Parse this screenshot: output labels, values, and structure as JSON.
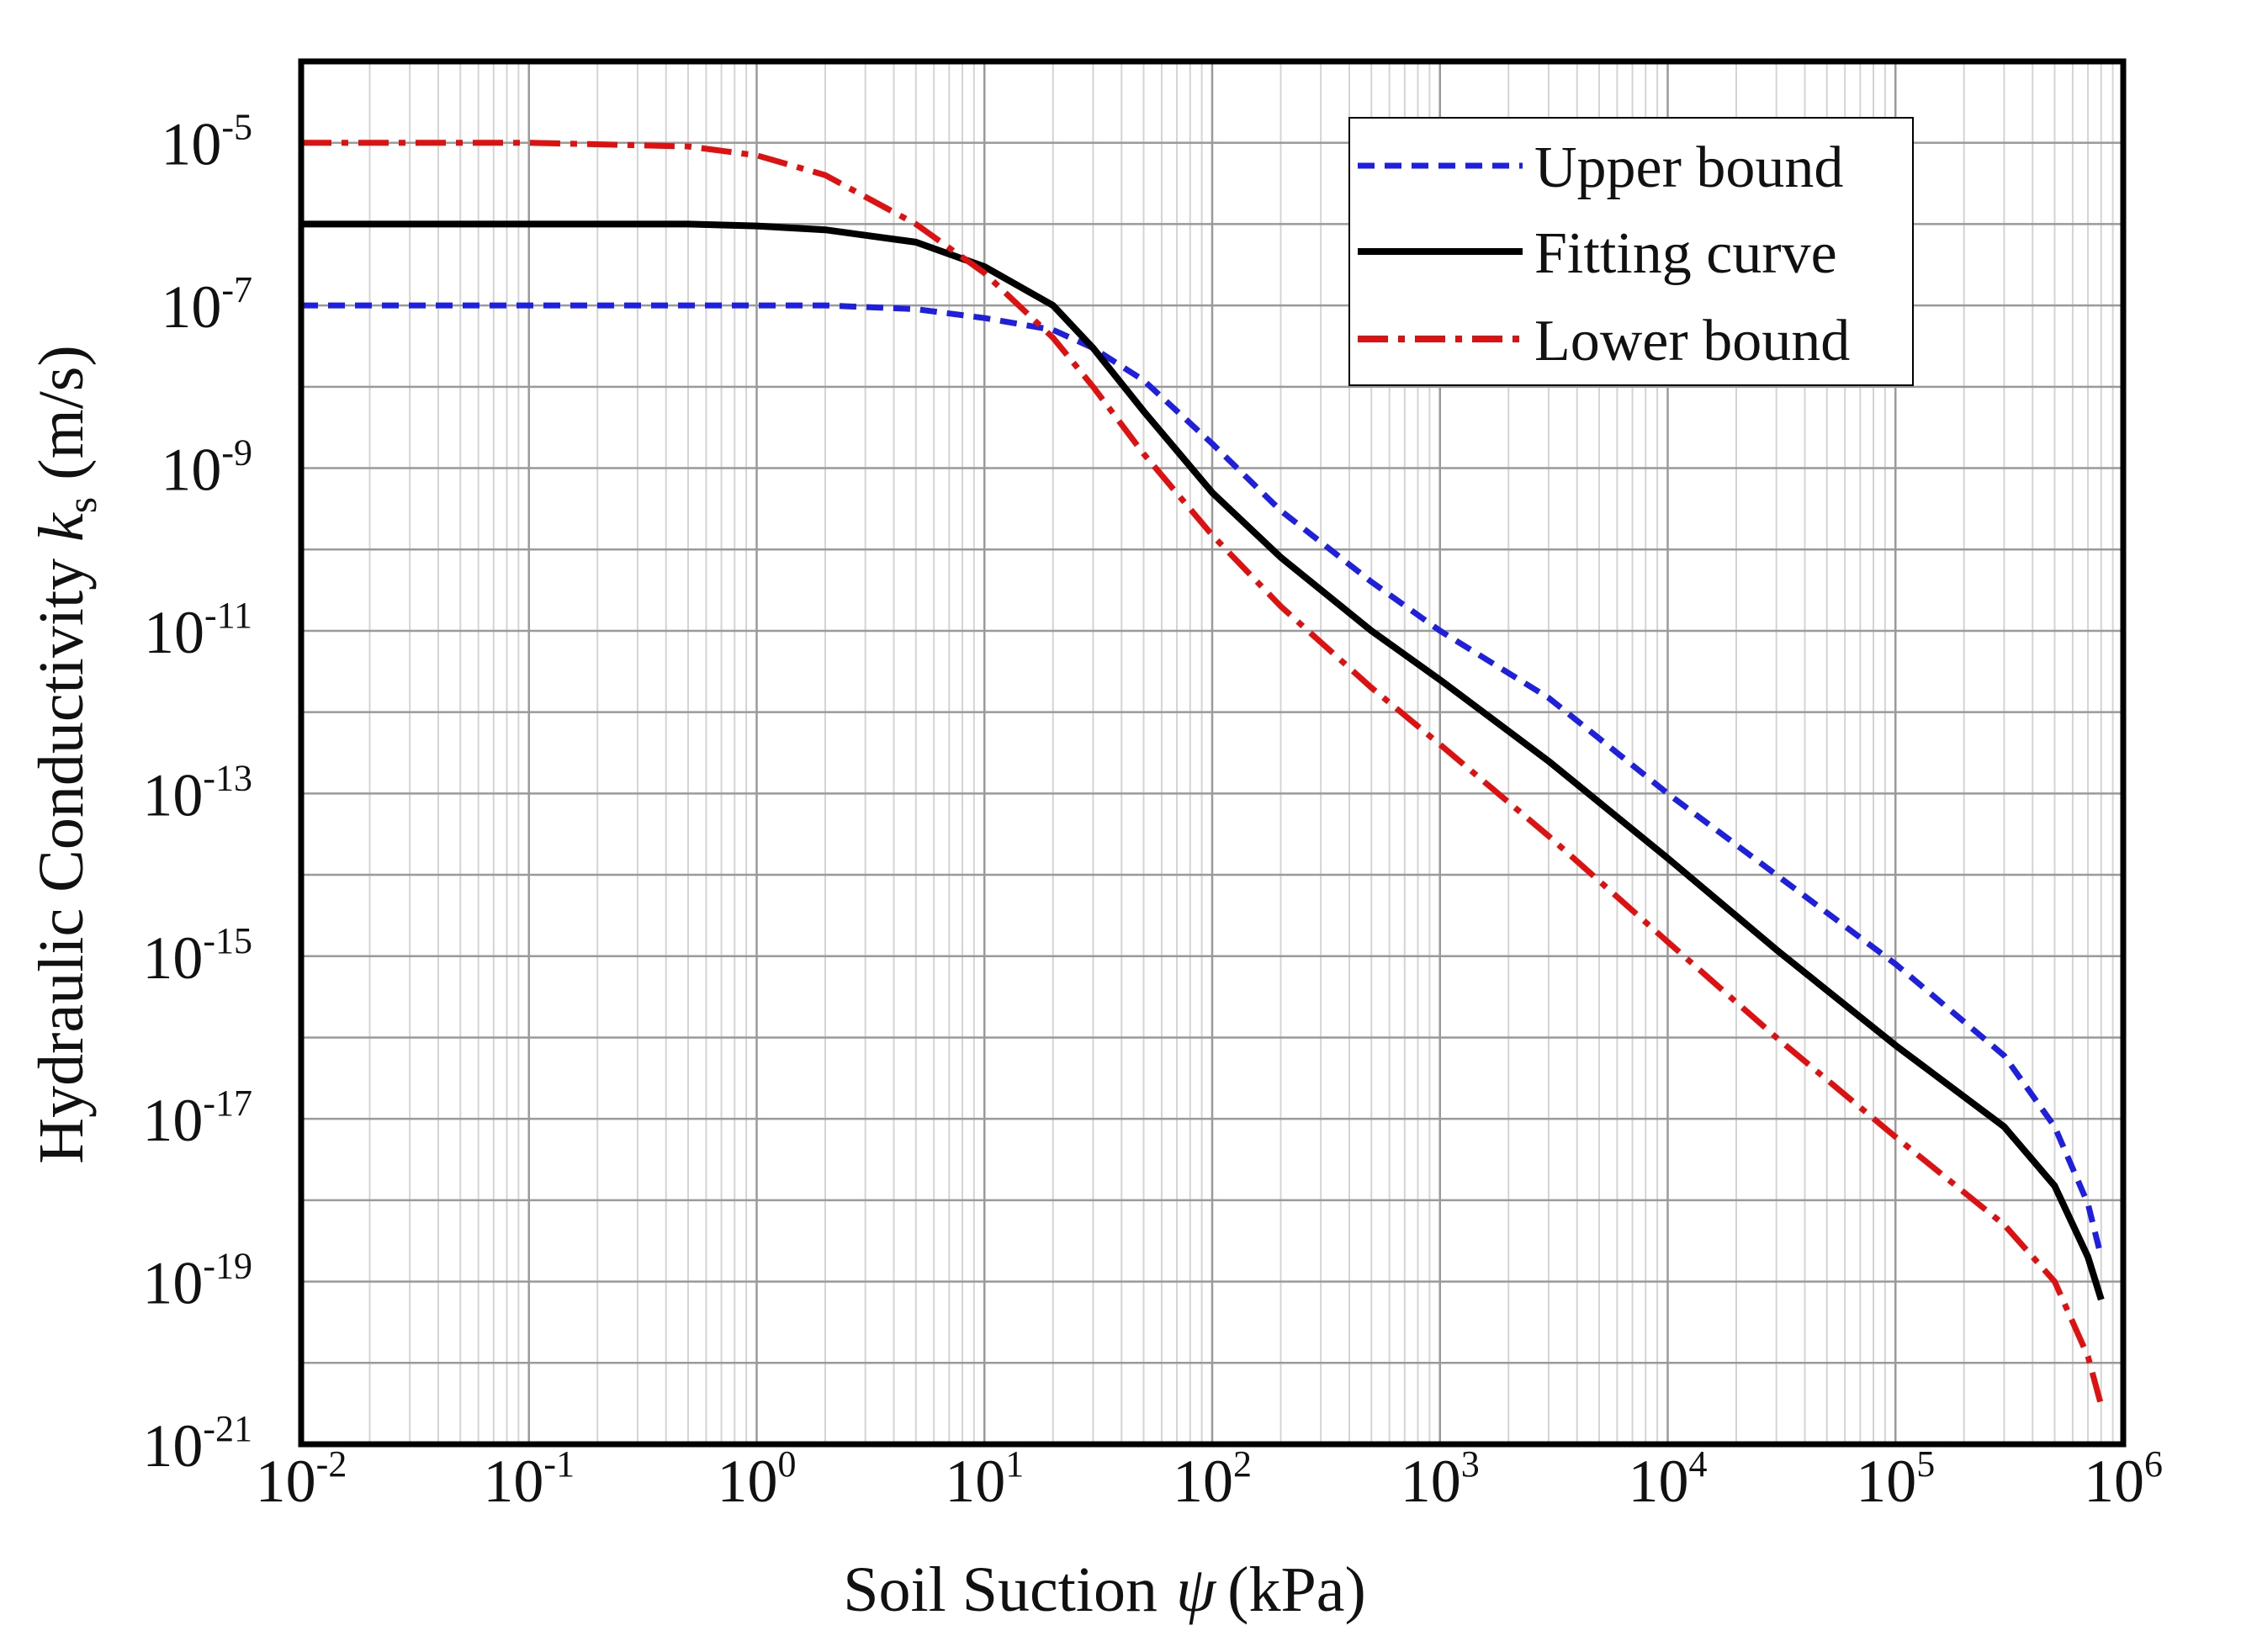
{
  "chart_data": {
    "type": "line",
    "xscale": "log",
    "yscale": "log",
    "xlim": [
      0.01,
      1000000
    ],
    "ylim": [
      1e-21,
      0.0001
    ],
    "xlabel": {
      "prefix": "Soil Suction",
      "symbol": "ψ",
      "suffix": "(kPa)"
    },
    "ylabel": {
      "prefix": "Hydraulic Conductivity",
      "symbol": "k",
      "subscript": "s",
      "suffix": "(m/s)"
    },
    "x_ticks": [
      {
        "value": 0.01,
        "base": "10",
        "exp": "-2"
      },
      {
        "value": 0.1,
        "base": "10",
        "exp": "-1"
      },
      {
        "value": 1,
        "base": "10",
        "exp": "0"
      },
      {
        "value": 10,
        "base": "10",
        "exp": "1"
      },
      {
        "value": 100,
        "base": "10",
        "exp": "2"
      },
      {
        "value": 1000,
        "base": "10",
        "exp": "3"
      },
      {
        "value": 10000,
        "base": "10",
        "exp": "4"
      },
      {
        "value": 100000,
        "base": "10",
        "exp": "5"
      },
      {
        "value": 1000000,
        "base": "10",
        "exp": "6"
      }
    ],
    "y_ticks": [
      {
        "value": 1e-05,
        "base": "10",
        "exp": "-5"
      },
      {
        "value": 1e-07,
        "base": "10",
        "exp": "-7"
      },
      {
        "value": 1e-09,
        "base": "10",
        "exp": "-9"
      },
      {
        "value": 1e-11,
        "base": "10",
        "exp": "-11"
      },
      {
        "value": 1e-13,
        "base": "10",
        "exp": "-13"
      },
      {
        "value": 1e-15,
        "base": "10",
        "exp": "-15"
      },
      {
        "value": 1e-17,
        "base": "10",
        "exp": "-17"
      },
      {
        "value": 1e-19,
        "base": "10",
        "exp": "-19"
      },
      {
        "value": 1e-21,
        "base": "10",
        "exp": "-21"
      }
    ],
    "grid": true,
    "legend_position": "top-right",
    "series": [
      {
        "name": "Upper bound",
        "color": "#1f1fe0",
        "style": "dashed",
        "x": [
          0.01,
          0.1,
          0.5,
          1,
          2,
          5,
          10,
          20,
          30,
          50,
          100,
          200,
          500,
          1000,
          3000,
          10000,
          30000,
          100000,
          300000,
          500000,
          700000,
          800000
        ],
        "y": [
          1e-07,
          1e-07,
          1e-07,
          1e-07,
          1e-07,
          9e-08,
          7e-08,
          5e-08,
          3e-08,
          1.2e-08,
          2e-09,
          3e-10,
          4e-11,
          1e-11,
          1.5e-12,
          1e-13,
          1e-14,
          8e-16,
          6e-17,
          8e-18,
          9e-19,
          2e-19
        ]
      },
      {
        "name": "Fitting curve",
        "color": "#000000",
        "style": "solid",
        "x": [
          0.01,
          0.1,
          0.5,
          1,
          2,
          5,
          10,
          20,
          30,
          50,
          100,
          200,
          500,
          1000,
          3000,
          10000,
          30000,
          100000,
          300000,
          500000,
          700000,
          800000
        ],
        "y": [
          1e-06,
          1e-06,
          1e-06,
          9.5e-07,
          8.5e-07,
          6e-07,
          3e-07,
          1e-07,
          3e-08,
          5e-09,
          5e-10,
          8e-11,
          1e-11,
          2.5e-12,
          2.5e-13,
          1.6e-14,
          1.2e-15,
          8e-17,
          8e-18,
          1.5e-18,
          2e-19,
          6e-20
        ]
      },
      {
        "name": "Lower bound",
        "color": "#e01010",
        "style": "dashdot",
        "x": [
          0.01,
          0.1,
          0.5,
          1,
          2,
          5,
          10,
          20,
          30,
          50,
          100,
          200,
          500,
          1000,
          3000,
          10000,
          30000,
          100000,
          300000,
          500000,
          700000,
          800000
        ],
        "y": [
          1e-05,
          1e-05,
          9e-06,
          7e-06,
          4e-06,
          1e-06,
          2.5e-07,
          4e-08,
          1e-08,
          1.5e-09,
          1.5e-10,
          2e-11,
          2e-12,
          4e-13,
          3e-14,
          1.5e-15,
          1e-16,
          6e-18,
          5e-19,
          1e-19,
          1.2e-20,
          3e-21
        ]
      }
    ]
  }
}
